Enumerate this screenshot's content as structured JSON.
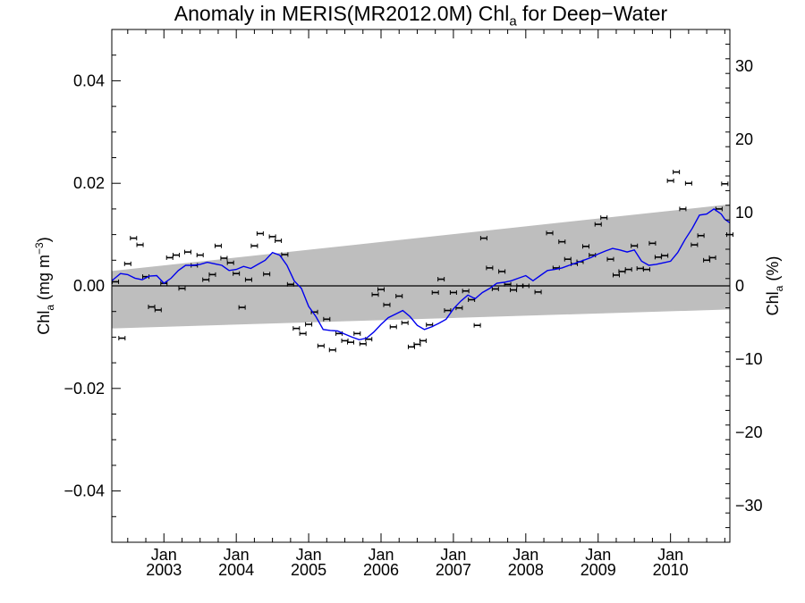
{
  "chart_data": {
    "type": "line",
    "title": {
      "prefix": "Anomaly in MERIS(MR2012.0M) Chl",
      "sub": "a",
      "suffix": " for Deep−Water"
    },
    "ylabel_left": {
      "base": "Chl",
      "sub": "a",
      "units_open": " (mg m",
      "units_sup": "−3",
      "units_close": ")"
    },
    "ylabel_right": {
      "base": "Chl",
      "sub": "a",
      "rest": " (%)"
    },
    "x_range": [
      2002.28,
      2010.82
    ],
    "y_left_range": [
      -0.05,
      0.05
    ],
    "y_right_range": [
      -35,
      35
    ],
    "x_ticks": [
      {
        "x": 2003.0,
        "top": "Jan",
        "bottom": "2003"
      },
      {
        "x": 2004.0,
        "top": "Jan",
        "bottom": "2004"
      },
      {
        "x": 2005.0,
        "top": "Jan",
        "bottom": "2005"
      },
      {
        "x": 2006.0,
        "top": "Jan",
        "bottom": "2006"
      },
      {
        "x": 2007.0,
        "top": "Jan",
        "bottom": "2007"
      },
      {
        "x": 2008.0,
        "top": "Jan",
        "bottom": "2008"
      },
      {
        "x": 2009.0,
        "top": "Jan",
        "bottom": "2009"
      },
      {
        "x": 2010.0,
        "top": "Jan",
        "bottom": "2010"
      }
    ],
    "y_left_ticks": [
      {
        "v": 0.04,
        "label": "0.04"
      },
      {
        "v": 0.02,
        "label": "0.02"
      },
      {
        "v": 0.0,
        "label": "0.00"
      },
      {
        "v": -0.02,
        "label": "−0.02"
      },
      {
        "v": -0.04,
        "label": "−0.04"
      }
    ],
    "y_right_ticks": [
      {
        "v": 30,
        "label": "30"
      },
      {
        "v": 20,
        "label": "20"
      },
      {
        "v": 10,
        "label": "10"
      },
      {
        "v": 0,
        "label": "0"
      },
      {
        "v": -10,
        "label": "−10"
      },
      {
        "v": -20,
        "label": "−20"
      },
      {
        "v": -30,
        "label": "−30"
      }
    ],
    "zero_line": 0.0,
    "trend_band": {
      "color": "#bebebe",
      "x": [
        2002.28,
        2010.82
      ],
      "upper": [
        0.0029,
        0.0159
      ],
      "lower": [
        -0.0083,
        -0.0046
      ]
    },
    "monthly_anomalies": {
      "color": "#000000",
      "x": [
        2002.33,
        2002.42,
        2002.5,
        2002.58,
        2002.67,
        2002.75,
        2002.83,
        2002.92,
        2003.0,
        2003.08,
        2003.17,
        2003.25,
        2003.33,
        2003.42,
        2003.5,
        2003.58,
        2003.67,
        2003.75,
        2003.83,
        2003.92,
        2004.0,
        2004.08,
        2004.17,
        2004.25,
        2004.33,
        2004.42,
        2004.5,
        2004.58,
        2004.67,
        2004.75,
        2004.83,
        2004.92,
        2005.0,
        2005.08,
        2005.17,
        2005.25,
        2005.33,
        2005.42,
        2005.5,
        2005.58,
        2005.67,
        2005.75,
        2005.83,
        2005.92,
        2006.0,
        2006.08,
        2006.17,
        2006.25,
        2006.33,
        2006.42,
        2006.5,
        2006.58,
        2006.67,
        2006.75,
        2006.83,
        2006.92,
        2007.0,
        2007.08,
        2007.17,
        2007.25,
        2007.33,
        2007.42,
        2007.5,
        2007.58,
        2007.67,
        2007.75,
        2007.83,
        2007.92,
        2008.0,
        2008.17,
        2008.33,
        2008.42,
        2008.5,
        2008.58,
        2008.67,
        2008.75,
        2008.83,
        2008.92,
        2009.0,
        2009.08,
        2009.17,
        2009.25,
        2009.33,
        2009.42,
        2009.5,
        2009.58,
        2009.67,
        2009.75,
        2009.83,
        2009.92,
        2010.0,
        2010.08,
        2010.17,
        2010.25,
        2010.33,
        2010.42,
        2010.5,
        2010.58,
        2010.67,
        2010.75,
        2010.82
      ],
      "y": [
        0.0008,
        -0.0102,
        0.0043,
        0.0093,
        0.008,
        0.0018,
        -0.0041,
        -0.0047,
        0.0005,
        0.0055,
        0.006,
        -0.0005,
        0.0066,
        0.004,
        0.006,
        0.0012,
        0.0022,
        0.0078,
        0.0054,
        0.0045,
        0.0024,
        -0.0042,
        0.0012,
        0.0078,
        0.0102,
        0.0023,
        0.0096,
        0.0088,
        0.0061,
        0.0003,
        -0.0083,
        -0.0093,
        -0.0075,
        -0.0051,
        -0.0117,
        -0.0065,
        -0.0125,
        -0.0093,
        -0.0107,
        -0.011,
        -0.0093,
        -0.0113,
        -0.0104,
        -0.0017,
        -0.0007,
        -0.0037,
        -0.008,
        -0.002,
        -0.0072,
        -0.0119,
        -0.0114,
        -0.0107,
        -0.0076,
        -0.0013,
        0.0013,
        -0.0048,
        -0.0013,
        -0.0043,
        -0.001,
        -0.0027,
        -0.0077,
        0.0093,
        0.0035,
        -0.0006,
        0.0028,
        0.0003,
        -0.0008,
        0.0,
        0.0,
        -0.0012,
        0.0103,
        0.0035,
        0.0086,
        0.0052,
        0.0043,
        0.0047,
        0.0077,
        0.006,
        0.012,
        0.0133,
        0.0052,
        0.0021,
        0.0028,
        0.0032,
        0.0078,
        0.0034,
        0.0032,
        0.0083,
        0.0056,
        0.0059,
        0.0205,
        0.0222,
        0.015,
        0.02,
        0.008,
        0.0098,
        0.005,
        0.0055,
        0.015,
        0.0199,
        0.01
      ]
    },
    "smoothed": {
      "color": "#0000ee",
      "x": [
        2002.28,
        2002.4,
        2002.5,
        2002.6,
        2002.7,
        2002.8,
        2002.9,
        2003.0,
        2003.1,
        2003.2,
        2003.3,
        2003.4,
        2003.5,
        2003.6,
        2003.7,
        2003.8,
        2003.9,
        2004.0,
        2004.1,
        2004.2,
        2004.3,
        2004.4,
        2004.5,
        2004.6,
        2004.7,
        2004.8,
        2004.9,
        2005.0,
        2005.1,
        2005.2,
        2005.3,
        2005.4,
        2005.5,
        2005.6,
        2005.7,
        2005.8,
        2005.9,
        2006.0,
        2006.1,
        2006.2,
        2006.3,
        2006.4,
        2006.5,
        2006.6,
        2006.7,
        2006.8,
        2006.9,
        2007.0,
        2007.1,
        2007.2,
        2007.3,
        2007.4,
        2007.5,
        2007.6,
        2007.7,
        2007.8,
        2007.9,
        2008.0,
        2008.1,
        2008.2,
        2008.3,
        2008.4,
        2008.5,
        2008.6,
        2008.7,
        2008.8,
        2008.9,
        2009.0,
        2009.1,
        2009.2,
        2009.3,
        2009.4,
        2009.5,
        2009.6,
        2009.7,
        2009.8,
        2009.9,
        2010.0,
        2010.1,
        2010.2,
        2010.3,
        2010.4,
        2010.5,
        2010.6,
        2010.7,
        2010.75,
        2010.82
      ],
      "y": [
        0.001,
        0.0024,
        0.0022,
        0.0015,
        0.0012,
        0.0019,
        0.002,
        0.0005,
        0.0015,
        0.003,
        0.004,
        0.004,
        0.0042,
        0.0046,
        0.0043,
        0.004,
        0.003,
        0.0032,
        0.0038,
        0.0034,
        0.0042,
        0.005,
        0.0065,
        0.006,
        0.004,
        0.001,
        -0.0005,
        -0.004,
        -0.006,
        -0.0085,
        -0.0087,
        -0.0088,
        -0.0094,
        -0.01,
        -0.0105,
        -0.0102,
        -0.009,
        -0.0075,
        -0.0062,
        -0.0055,
        -0.0048,
        -0.006,
        -0.0077,
        -0.0085,
        -0.008,
        -0.0073,
        -0.0065,
        -0.0045,
        -0.003,
        -0.0018,
        -0.0025,
        -0.0013,
        -0.0005,
        0.0005,
        0.0007,
        0.001,
        0.0015,
        0.002,
        0.001,
        0.002,
        0.003,
        0.0032,
        0.0035,
        0.004,
        0.0045,
        0.005,
        0.0055,
        0.0062,
        0.0068,
        0.0073,
        0.007,
        0.0066,
        0.007,
        0.0048,
        0.004,
        0.0042,
        0.0045,
        0.0048,
        0.0065,
        0.009,
        0.0112,
        0.0138,
        0.014,
        0.015,
        0.014,
        0.013,
        0.0123
      ]
    }
  }
}
